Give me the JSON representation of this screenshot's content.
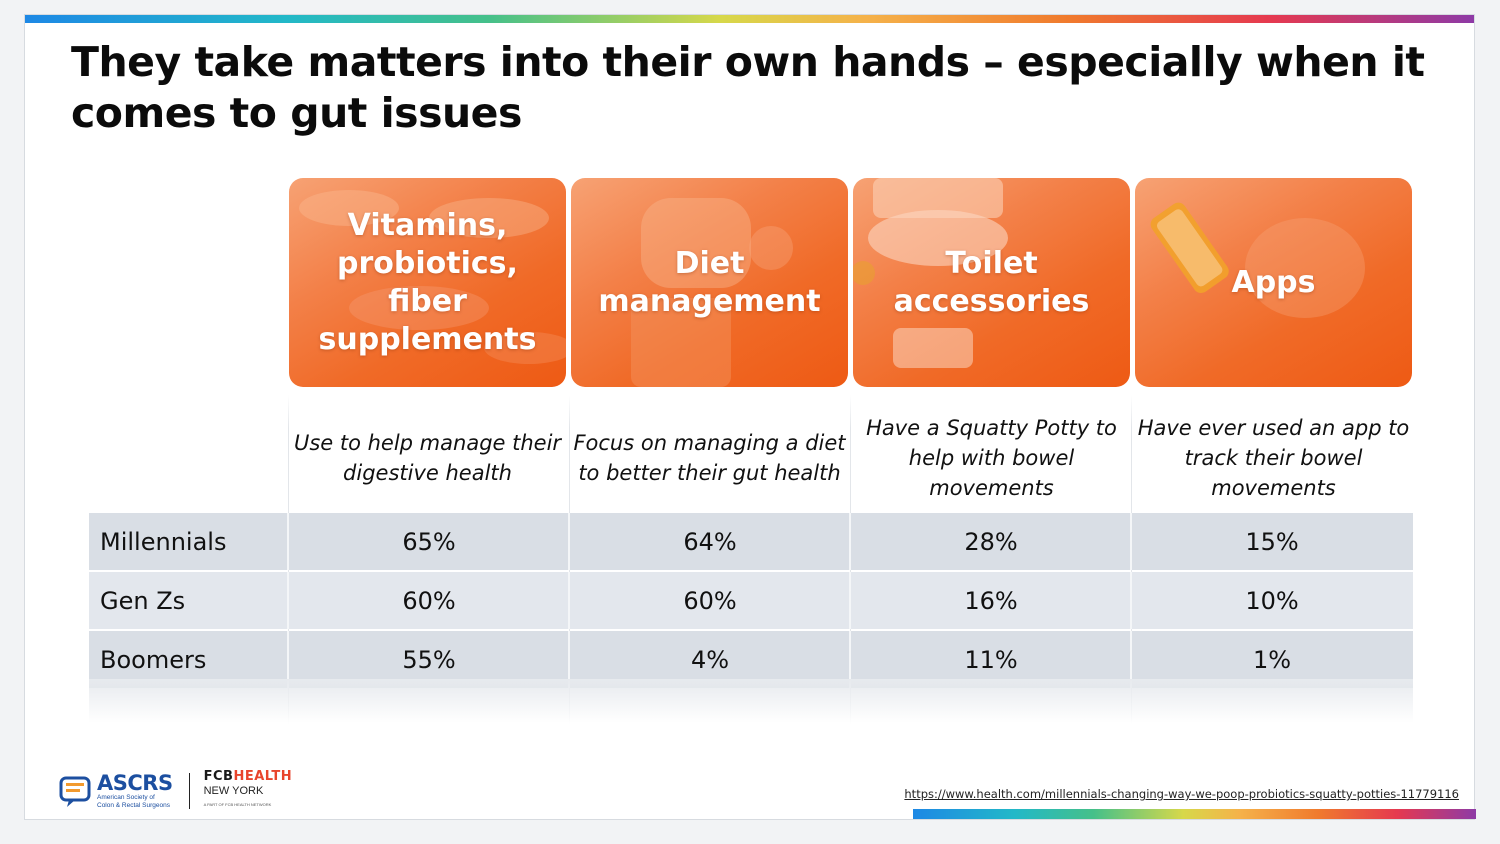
{
  "title": "They take matters into their own hands – especially when it comes to gut issues",
  "categories": [
    {
      "label": "Vitamins, probiotics, fiber supplements",
      "description": "Use to help manage their digestive health"
    },
    {
      "label": "Diet management",
      "description": "Focus on managing a diet to better their gut health"
    },
    {
      "label": "Toilet accessories",
      "description": "Have a Squatty Potty to help with bowel movements"
    },
    {
      "label": "Apps",
      "description": "Have ever used an app to track their bowel movements"
    }
  ],
  "rows": [
    {
      "label": "Millennials",
      "values": [
        "65%",
        "64%",
        "28%",
        "15%"
      ]
    },
    {
      "label": "Gen Zs",
      "values": [
        "60%",
        "60%",
        "16%",
        "10%"
      ]
    },
    {
      "label": "Boomers",
      "values": [
        "55%",
        "4%",
        "11%",
        "1%"
      ]
    }
  ],
  "footer": {
    "ascrs_name": "ASCRS",
    "ascrs_sub_1": "American Society of",
    "ascrs_sub_2": "Colon & Rectal Surgeons",
    "fh_fcb": "FCB",
    "fh_health": "HEALTH",
    "fh_city": "NEW YORK",
    "fh_tag": "A PART OF FCB HEALTH NETWORK",
    "source_url": "https://www.health.com/millennials-changing-way-we-poop-probiotics-squatty-potties-11779116"
  },
  "colors": {
    "card_orange": "#f06a27",
    "row_bg": "#d9dee5",
    "ascrs_blue": "#1c4fa0",
    "health_red": "#e8452c"
  }
}
